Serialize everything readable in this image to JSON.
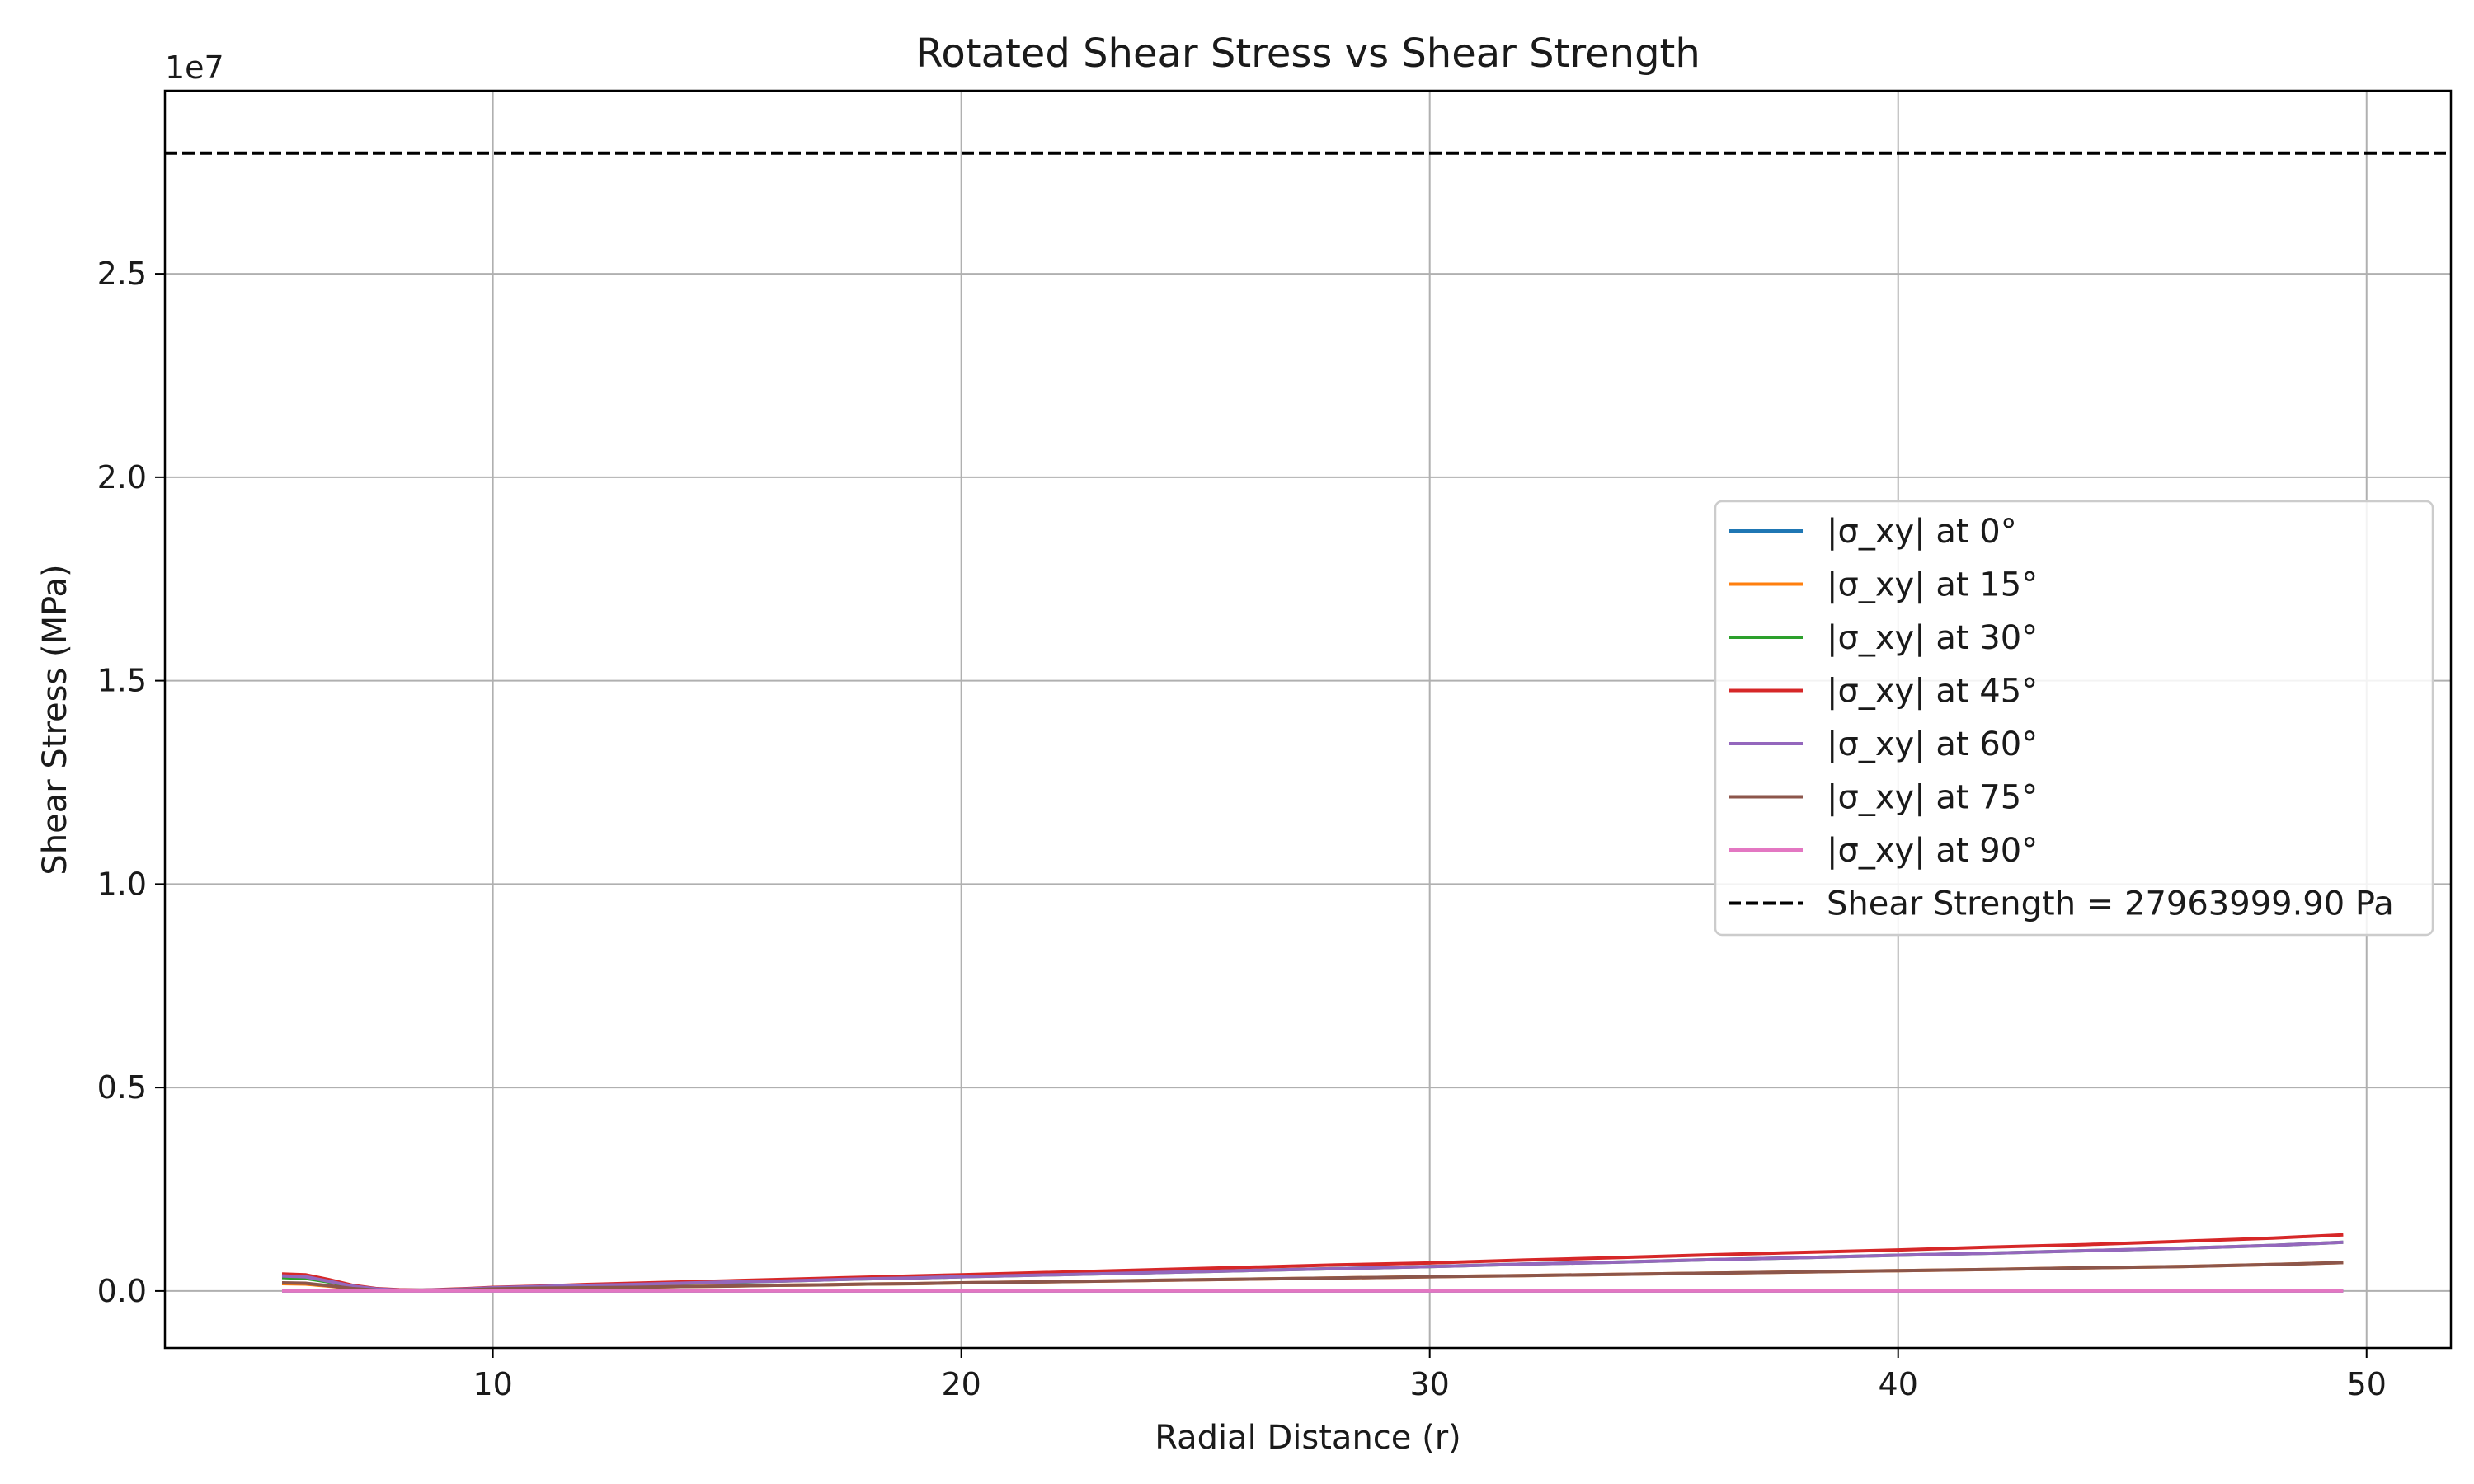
{
  "chart_data": {
    "type": "line",
    "title": "Rotated Shear Stress vs Shear Strength",
    "xlabel": "Radial Distance (r)",
    "ylabel": "Shear Stress (MPa)",
    "y_offset_label": "1e7",
    "xlim": [
      3.0,
      51.8
    ],
    "ylim": [
      -1400000,
      29500000
    ],
    "x_ticks": [
      10,
      20,
      30,
      40,
      50
    ],
    "x_tick_labels": [
      "10",
      "20",
      "30",
      "40",
      "50"
    ],
    "y_ticks": [
      0,
      5000000,
      10000000,
      15000000,
      20000000,
      25000000
    ],
    "y_tick_labels": [
      "0.0",
      "0.5",
      "1.0",
      "1.5",
      "2.0",
      "2.5"
    ],
    "grid": true,
    "legend_position": "center-right",
    "x": [
      5.5,
      6.0,
      6.5,
      7.0,
      7.5,
      8.0,
      8.5,
      9.0,
      9.5,
      10.0,
      11,
      12,
      13,
      14,
      15,
      16,
      17,
      18,
      19,
      20,
      22,
      24,
      26,
      28,
      30,
      32,
      34,
      36,
      38,
      40,
      42,
      44,
      46,
      48,
      49.5
    ],
    "series": [
      {
        "name": "|σ_xy| at 0°",
        "color": "#1f77b4",
        "values": [
          0,
          0,
          0,
          0,
          0,
          0,
          0,
          0,
          0,
          0,
          0,
          0,
          0,
          0,
          0,
          0,
          0,
          0,
          0,
          0,
          0,
          0,
          0,
          0,
          0,
          0,
          0,
          0,
          0,
          0,
          0,
          0,
          0,
          0,
          0
        ]
      },
      {
        "name": "|σ_xy| at 15°",
        "color": "#ff7f0e",
        "values": [
          180000,
          170000,
          120000,
          60000,
          20000,
          10000,
          10000,
          20000,
          30000,
          50000,
          70000,
          80000,
          90000,
          110000,
          120000,
          140000,
          150000,
          170000,
          180000,
          200000,
          230000,
          260000,
          290000,
          320000,
          350000,
          380000,
          410000,
          440000,
          470000,
          500000,
          530000,
          570000,
          600000,
          650000,
          700000
        ]
      },
      {
        "name": "|σ_xy| at 30°",
        "color": "#2ca02c",
        "values": [
          330000,
          310000,
          220000,
          110000,
          50000,
          20000,
          20000,
          30000,
          50000,
          80000,
          110000,
          140000,
          160000,
          190000,
          210000,
          240000,
          270000,
          300000,
          320000,
          350000,
          400000,
          450000,
          500000,
          550000,
          600000,
          660000,
          710000,
          770000,
          820000,
          880000,
          930000,
          990000,
          1050000,
          1120000,
          1200000
        ]
      },
      {
        "name": "|σ_xy| at 45°",
        "color": "#d62728",
        "values": [
          420000,
          400000,
          280000,
          140000,
          60000,
          30000,
          20000,
          40000,
          60000,
          90000,
          120000,
          160000,
          190000,
          220000,
          250000,
          280000,
          310000,
          340000,
          370000,
          400000,
          460000,
          520000,
          580000,
          640000,
          690000,
          760000,
          820000,
          890000,
          950000,
          1010000,
          1080000,
          1140000,
          1220000,
          1300000,
          1380000
        ]
      },
      {
        "name": "|σ_xy| at 60°",
        "color": "#9467bd",
        "values": [
          370000,
          350000,
          240000,
          120000,
          50000,
          20000,
          20000,
          30000,
          50000,
          80000,
          110000,
          140000,
          160000,
          190000,
          220000,
          240000,
          270000,
          300000,
          320000,
          350000,
          400000,
          450000,
          500000,
          550000,
          600000,
          660000,
          710000,
          770000,
          820000,
          880000,
          930000,
          990000,
          1050000,
          1120000,
          1200000
        ]
      },
      {
        "name": "|σ_xy| at 75°",
        "color": "#8c564b",
        "values": [
          200000,
          190000,
          130000,
          60000,
          20000,
          10000,
          10000,
          20000,
          30000,
          50000,
          70000,
          80000,
          90000,
          110000,
          120000,
          140000,
          150000,
          170000,
          180000,
          200000,
          230000,
          260000,
          290000,
          320000,
          350000,
          380000,
          410000,
          440000,
          470000,
          500000,
          530000,
          570000,
          600000,
          650000,
          700000
        ]
      },
      {
        "name": "|σ_xy| at 90°",
        "color": "#e377c2",
        "values": [
          0,
          0,
          0,
          0,
          0,
          0,
          0,
          0,
          0,
          0,
          0,
          0,
          0,
          0,
          0,
          0,
          0,
          0,
          0,
          0,
          0,
          0,
          0,
          0,
          0,
          0,
          0,
          0,
          0,
          0,
          0,
          0,
          0,
          0,
          0
        ]
      }
    ],
    "reference_line": {
      "name": "Shear Strength = 27963999.90 Pa",
      "value": 27963999.9,
      "color": "#000000",
      "style": "dashed"
    }
  }
}
